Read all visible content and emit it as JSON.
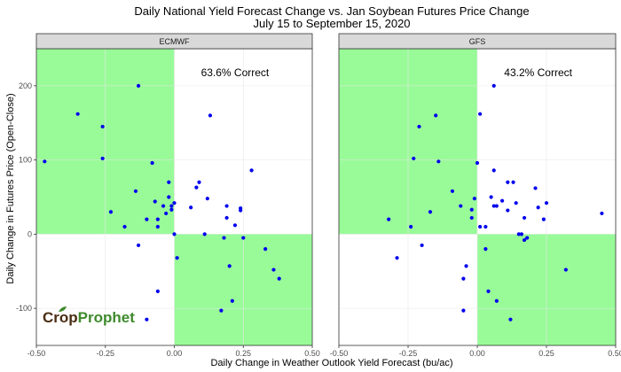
{
  "chart_data": {
    "type": "scatter",
    "title": "Daily National Yield Forecast Change vs. Jan Soybean Futures Price Change",
    "subtitle": "July 15 to September 15, 2020",
    "xlabel": "Daily Change in Weather Outlook Yield Forecast (bu/ac)",
    "ylabel": "Daily Change in Futures Price (Open-Close)",
    "xlim": [
      -0.5,
      0.5
    ],
    "ylim": [
      -150,
      250
    ],
    "xticks": [
      -0.5,
      -0.25,
      0,
      0.25,
      0.5
    ],
    "xtick_labels": [
      "-0.50",
      "-0.25",
      "0.00",
      "0.25",
      "0.50"
    ],
    "yticks": [
      -100,
      0,
      100,
      200
    ],
    "ytick_labels": [
      "-100",
      "0",
      "100",
      "200"
    ],
    "grid": true,
    "point_color": "#0000ee",
    "shade_color": "#98fb98",
    "facets": [
      {
        "name": "ECMWF",
        "annotation": "63.6% Correct",
        "points": [
          {
            "x": -0.47,
            "y": 98
          },
          {
            "x": -0.35,
            "y": 162
          },
          {
            "x": -0.26,
            "y": 145
          },
          {
            "x": -0.26,
            "y": 102
          },
          {
            "x": -0.23,
            "y": 30
          },
          {
            "x": -0.18,
            "y": 10
          },
          {
            "x": -0.14,
            "y": 58
          },
          {
            "x": -0.13,
            "y": 200
          },
          {
            "x": -0.13,
            "y": -15
          },
          {
            "x": -0.1,
            "y": 20
          },
          {
            "x": -0.1,
            "y": -115
          },
          {
            "x": -0.08,
            "y": 96
          },
          {
            "x": -0.07,
            "y": 44
          },
          {
            "x": -0.06,
            "y": 10
          },
          {
            "x": -0.06,
            "y": 20
          },
          {
            "x": -0.06,
            "y": -77
          },
          {
            "x": -0.04,
            "y": 38
          },
          {
            "x": -0.03,
            "y": 28
          },
          {
            "x": -0.02,
            "y": 70
          },
          {
            "x": -0.02,
            "y": 50
          },
          {
            "x": -0.01,
            "y": 38
          },
          {
            "x": -0.01,
            "y": 33
          },
          {
            "x": 0.0,
            "y": 42
          },
          {
            "x": 0.0,
            "y": 0
          },
          {
            "x": 0.01,
            "y": -32
          },
          {
            "x": 0.06,
            "y": 36
          },
          {
            "x": 0.08,
            "y": 63
          },
          {
            "x": 0.09,
            "y": 70
          },
          {
            "x": 0.11,
            "y": 0
          },
          {
            "x": 0.12,
            "y": 48
          },
          {
            "x": 0.13,
            "y": 160
          },
          {
            "x": 0.17,
            "y": -103
          },
          {
            "x": 0.18,
            "y": -5
          },
          {
            "x": 0.19,
            "y": 38
          },
          {
            "x": 0.19,
            "y": 22
          },
          {
            "x": 0.2,
            "y": -43
          },
          {
            "x": 0.21,
            "y": -90
          },
          {
            "x": 0.22,
            "y": 12
          },
          {
            "x": 0.24,
            "y": 35
          },
          {
            "x": 0.24,
            "y": 32
          },
          {
            "x": 0.25,
            "y": -5
          },
          {
            "x": 0.28,
            "y": 86
          },
          {
            "x": 0.33,
            "y": -20
          },
          {
            "x": 0.36,
            "y": -48
          },
          {
            "x": 0.38,
            "y": -60
          }
        ]
      },
      {
        "name": "GFS",
        "annotation": "43.2% Correct",
        "points": [
          {
            "x": -0.32,
            "y": 20
          },
          {
            "x": -0.29,
            "y": -32
          },
          {
            "x": -0.24,
            "y": 10
          },
          {
            "x": -0.23,
            "y": 102
          },
          {
            "x": -0.21,
            "y": 145
          },
          {
            "x": -0.2,
            "y": -15
          },
          {
            "x": -0.17,
            "y": 30
          },
          {
            "x": -0.15,
            "y": 160
          },
          {
            "x": -0.14,
            "y": 98
          },
          {
            "x": -0.09,
            "y": 58
          },
          {
            "x": -0.06,
            "y": 38
          },
          {
            "x": -0.05,
            "y": -60
          },
          {
            "x": -0.05,
            "y": -103
          },
          {
            "x": -0.04,
            "y": -43
          },
          {
            "x": -0.02,
            "y": 33
          },
          {
            "x": -0.02,
            "y": 22
          },
          {
            "x": -0.01,
            "y": 48
          },
          {
            "x": 0.0,
            "y": 96
          },
          {
            "x": 0.01,
            "y": 162
          },
          {
            "x": 0.01,
            "y": 10
          },
          {
            "x": 0.03,
            "y": 10
          },
          {
            "x": 0.03,
            "y": -20
          },
          {
            "x": 0.04,
            "y": -77
          },
          {
            "x": 0.05,
            "y": 50
          },
          {
            "x": 0.06,
            "y": 200
          },
          {
            "x": 0.06,
            "y": 86
          },
          {
            "x": 0.06,
            "y": 38
          },
          {
            "x": 0.07,
            "y": 38
          },
          {
            "x": 0.07,
            "y": -90
          },
          {
            "x": 0.09,
            "y": 45
          },
          {
            "x": 0.11,
            "y": 70
          },
          {
            "x": 0.11,
            "y": 32
          },
          {
            "x": 0.12,
            "y": -115
          },
          {
            "x": 0.13,
            "y": 70
          },
          {
            "x": 0.14,
            "y": 42
          },
          {
            "x": 0.15,
            "y": 0
          },
          {
            "x": 0.16,
            "y": 0
          },
          {
            "x": 0.17,
            "y": -8
          },
          {
            "x": 0.17,
            "y": 22
          },
          {
            "x": 0.18,
            "y": -5
          },
          {
            "x": 0.21,
            "y": 62
          },
          {
            "x": 0.22,
            "y": 36
          },
          {
            "x": 0.24,
            "y": 20
          },
          {
            "x": 0.25,
            "y": 42
          },
          {
            "x": 0.32,
            "y": -48
          },
          {
            "x": 0.45,
            "y": 28
          }
        ]
      }
    ]
  },
  "logo": {
    "part1": "Crop",
    "part2": "Prophet"
  }
}
